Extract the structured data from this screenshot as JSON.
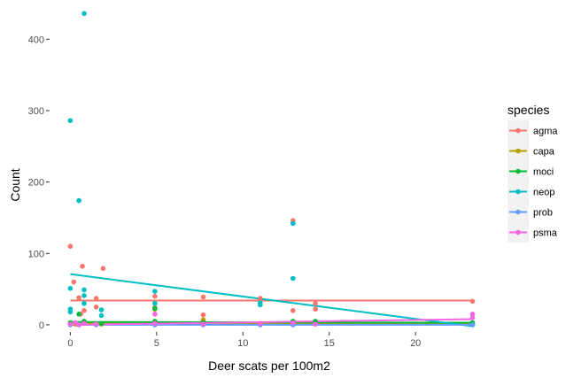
{
  "chart_data": {
    "type": "scatter",
    "xlabel": "Deer scats per 100m2",
    "ylabel": "Count",
    "xlim": [
      -1.2,
      24.3
    ],
    "ylim": [
      -10,
      445
    ],
    "x_ticks": [
      0,
      5,
      10,
      15,
      20
    ],
    "y_ticks": [
      0,
      100,
      200,
      300,
      400
    ],
    "grid": false,
    "legend": {
      "title": "species",
      "placement": "right"
    },
    "series": [
      {
        "name": "agma",
        "color": "#F8766D",
        "points": [
          [
            0,
            110
          ],
          [
            0.2,
            60
          ],
          [
            0.5,
            38
          ],
          [
            0.6,
            15
          ],
          [
            0.7,
            82
          ],
          [
            0.8,
            20
          ],
          [
            1.5,
            37
          ],
          [
            1.5,
            25
          ],
          [
            1.9,
            79
          ],
          [
            4.9,
            40
          ],
          [
            4.9,
            24
          ],
          [
            7.7,
            39
          ],
          [
            7.7,
            14
          ],
          [
            11,
            37
          ],
          [
            12.9,
            146
          ],
          [
            12.9,
            20
          ],
          [
            14.2,
            30
          ],
          [
            14.2,
            22
          ],
          [
            23.3,
            33
          ]
        ],
        "fit_line": [
          [
            0,
            34
          ],
          [
            23.3,
            34
          ]
        ]
      },
      {
        "name": "capa",
        "color": "#B79F00",
        "points": [
          [
            0,
            2
          ],
          [
            0.3,
            1
          ],
          [
            0.8,
            3
          ],
          [
            1.8,
            1
          ],
          [
            4.9,
            22
          ],
          [
            7.7,
            7
          ],
          [
            11,
            2
          ],
          [
            12.9,
            3
          ],
          [
            14.2,
            3
          ],
          [
            23.3,
            2
          ]
        ],
        "fit_line": [
          [
            0,
            2
          ],
          [
            23.3,
            2
          ]
        ]
      },
      {
        "name": "moci",
        "color": "#00BA38",
        "points": [
          [
            0,
            3
          ],
          [
            0.5,
            15
          ],
          [
            0.8,
            5
          ],
          [
            1.8,
            2
          ],
          [
            4.9,
            23
          ],
          [
            4.9,
            5
          ],
          [
            7.7,
            3
          ],
          [
            12.9,
            5
          ],
          [
            14.2,
            5
          ],
          [
            23.3,
            3
          ]
        ],
        "fit_line": [
          [
            0,
            4
          ],
          [
            23.3,
            3
          ]
        ]
      },
      {
        "name": "neop",
        "color": "#00BFC4",
        "points": [
          [
            0,
            286
          ],
          [
            0,
            51
          ],
          [
            0,
            22
          ],
          [
            0,
            18
          ],
          [
            0.5,
            174
          ],
          [
            0.8,
            436
          ],
          [
            0.8,
            49
          ],
          [
            0.8,
            41
          ],
          [
            0.8,
            30
          ],
          [
            1.8,
            21
          ],
          [
            1.8,
            13
          ],
          [
            4.9,
            47
          ],
          [
            4.9,
            30
          ],
          [
            11,
            31
          ],
          [
            11,
            28
          ],
          [
            12.9,
            142
          ],
          [
            12.9,
            65
          ],
          [
            23.3,
            0
          ]
        ],
        "fit_line": [
          [
            0,
            71
          ],
          [
            23.3,
            -2
          ]
        ]
      },
      {
        "name": "prob",
        "color": "#619CFF",
        "points": [
          [
            0,
            0
          ],
          [
            0.5,
            0
          ],
          [
            1.5,
            0
          ],
          [
            4.9,
            0
          ],
          [
            7.7,
            0
          ],
          [
            11,
            0
          ],
          [
            12.9,
            0
          ],
          [
            23.3,
            0
          ]
        ],
        "fit_line": [
          [
            0,
            0
          ],
          [
            23.3,
            0
          ]
        ]
      },
      {
        "name": "psma",
        "color": "#F564E3",
        "points": [
          [
            0,
            1
          ],
          [
            0.3,
            3
          ],
          [
            0.5,
            0
          ],
          [
            0.8,
            2
          ],
          [
            1.5,
            1
          ],
          [
            4.9,
            15
          ],
          [
            4.9,
            2
          ],
          [
            7.7,
            1
          ],
          [
            11,
            2
          ],
          [
            12.9,
            3
          ],
          [
            14.2,
            1
          ],
          [
            23.3,
            15
          ],
          [
            23.3,
            10
          ]
        ],
        "fit_line": [
          [
            0,
            0
          ],
          [
            23.3,
            8
          ]
        ]
      }
    ]
  }
}
